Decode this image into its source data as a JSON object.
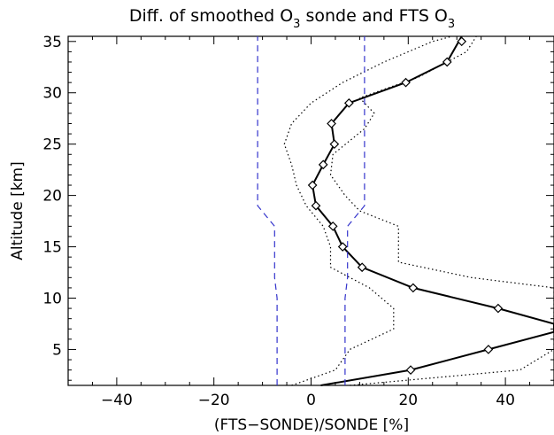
{
  "chart_data": {
    "type": "line",
    "title": "Diff. of smoothed O",
    "title_sub1": "3",
    "title_mid": " sonde and FTS O",
    "title_sub2": "3",
    "xlabel": "(FTS−SONDE)/SONDE [%]",
    "ylabel": "Altitude [km]",
    "xlim": [
      -50,
      50
    ],
    "ylim": [
      1.5,
      35.5
    ],
    "xticks": [
      -40,
      -20,
      0,
      20,
      40
    ],
    "xtick_labels": [
      "−40",
      "−20",
      "0",
      "20",
      "40"
    ],
    "yticks": [
      5,
      10,
      15,
      20,
      25,
      30,
      35
    ],
    "ytick_labels": [
      "5",
      "10",
      "15",
      "20",
      "25",
      "30",
      "35"
    ],
    "grid": false,
    "colors": {
      "mean": "#000000",
      "std": "#000000",
      "limit": "#3333cc"
    },
    "series": [
      {
        "role": "mean",
        "style": "solid-diamond",
        "x": [
          2.0,
          20.5,
          36.5,
          50.0,
          50.0,
          38.5,
          21.0,
          10.5,
          6.5,
          4.5,
          1.0,
          0.3,
          2.5,
          4.8,
          4.2,
          7.8,
          19.5,
          28.0,
          31.0
        ],
        "y": [
          1.5,
          3.0,
          5.0,
          6.7,
          7.5,
          9.0,
          11.0,
          13.0,
          15.0,
          17.0,
          19.0,
          21.0,
          23.0,
          25.0,
          27.0,
          29.0,
          31.0,
          33.0,
          35.5
        ],
        "markers_x": [
          20.5,
          36.5,
          38.5,
          21.0,
          10.5,
          6.5,
          4.5,
          1.0,
          0.3,
          2.5,
          4.8,
          4.2,
          7.8,
          19.5,
          28.0,
          31.0
        ],
        "markers_y": [
          3,
          5,
          9,
          11,
          13,
          15,
          17,
          19,
          21,
          23,
          25,
          27,
          29,
          31,
          33,
          35
        ]
      },
      {
        "role": "std-low",
        "style": "dotted",
        "x": [
          -4.0,
          5.0,
          8.0,
          17.0,
          17.0,
          12.0,
          4.0,
          4.0,
          2.5,
          -1.0,
          -3.0,
          -4.0,
          -5.5,
          -4.0,
          0.0,
          6.5,
          15.0,
          25.0,
          29.0
        ],
        "y": [
          1.5,
          3.0,
          5.0,
          7.0,
          9.0,
          11.0,
          13.0,
          15.0,
          17.0,
          19.0,
          21.0,
          23.0,
          25.0,
          27.0,
          29.0,
          31.0,
          33.0,
          35.0,
          35.5
        ]
      },
      {
        "role": "std-high",
        "style": "dotted",
        "x": [
          8.0,
          43.0,
          50.0,
          50.0,
          50.0,
          50.0,
          33.0,
          18.0,
          18.0,
          10.0,
          7.0,
          4.0,
          4.5,
          11.0,
          13.0,
          10.0,
          22.0,
          32.0,
          34.0
        ],
        "y": [
          1.5,
          3.0,
          5.0,
          7.0,
          9.0,
          11.0,
          12.0,
          13.5,
          17.0,
          18.5,
          20.0,
          22.0,
          24.0,
          26.5,
          28.0,
          29.5,
          31.5,
          34.0,
          35.5
        ]
      },
      {
        "role": "limit-low",
        "style": "dashed",
        "x": [
          -7.0,
          -7.0,
          -7.5,
          -7.5,
          -11.0,
          -11.0
        ],
        "y": [
          1.5,
          10.0,
          12.0,
          17.0,
          19.0,
          35.5
        ]
      },
      {
        "role": "limit-high",
        "style": "dashed",
        "x": [
          7.0,
          7.0,
          7.5,
          7.5,
          11.0,
          11.0
        ],
        "y": [
          1.5,
          10.0,
          12.0,
          17.0,
          19.0,
          35.5
        ]
      }
    ]
  }
}
